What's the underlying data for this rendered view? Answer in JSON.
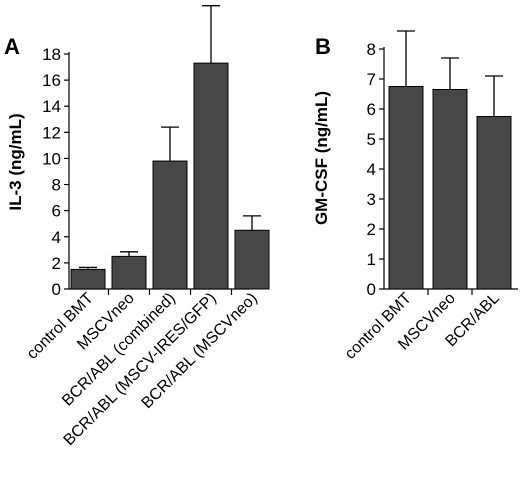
{
  "chart_data": [
    {
      "type": "bar",
      "panel": "A",
      "ylabel": "IL-3 (ng/mL)",
      "ylim": [
        0,
        18
      ],
      "yticks": [
        0,
        2,
        4,
        6,
        8,
        10,
        12,
        14,
        16,
        18
      ],
      "categories": [
        "control BMT",
        "MSCVneo",
        "BCR/ABL (combined)",
        "BCR/ABL (MSCV-IRES/GFP)",
        "BCR/ABL (MSCVneo)"
      ],
      "values": [
        1.5,
        2.5,
        9.8,
        17.3,
        4.5
      ],
      "errors": [
        0.15,
        0.35,
        2.6,
        4.4,
        1.1
      ],
      "bar_color": "#474747"
    },
    {
      "type": "bar",
      "panel": "B",
      "ylabel": "GM-CSF (ng/mL)",
      "ylim": [
        0,
        8
      ],
      "yticks": [
        0,
        1,
        2,
        3,
        4,
        5,
        6,
        7,
        8
      ],
      "categories": [
        "control BMT",
        "MSCVneo",
        "BCR/ABL"
      ],
      "values": [
        6.75,
        6.65,
        5.75
      ],
      "errors": [
        1.85,
        1.05,
        1.35
      ],
      "bar_color": "#474747"
    }
  ]
}
